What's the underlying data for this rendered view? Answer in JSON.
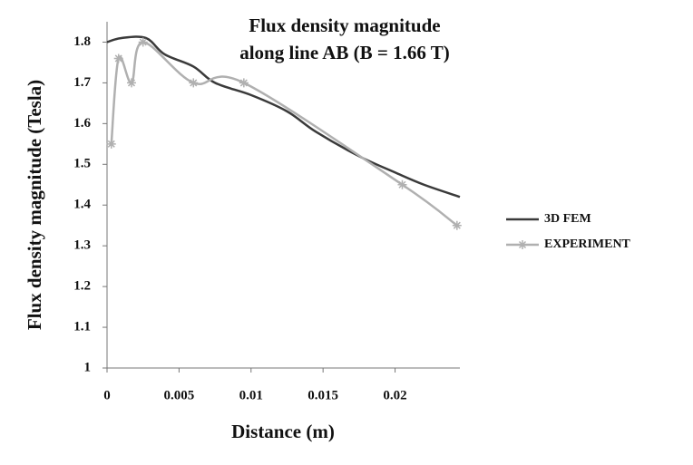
{
  "chart_data": {
    "type": "line",
    "title": [
      "Flux density magnitude",
      "along line AB (B = 1.66 T)"
    ],
    "x_label": "Distance (m)",
    "y_label": "Flux density magnitude  (Tesla)",
    "xlim": [
      0,
      0.0245
    ],
    "xticks": [
      0,
      0.005,
      0.01,
      0.015,
      0.02
    ],
    "ylim": [
      1,
      1.85
    ],
    "yticks": [
      1,
      1.1,
      1.2,
      1.3,
      1.4,
      1.5,
      1.6,
      1.7,
      1.8
    ],
    "series": [
      {
        "name": "3D FEM",
        "color": "#3a3a3a",
        "markers": false,
        "x": [
          0,
          0.001,
          0.0027,
          0.004,
          0.006,
          0.0075,
          0.01,
          0.0125,
          0.0145,
          0.0175,
          0.02,
          0.022,
          0.0245
        ],
        "values": [
          1.8,
          1.81,
          1.81,
          1.77,
          1.74,
          1.7,
          1.67,
          1.63,
          1.58,
          1.52,
          1.48,
          1.45,
          1.42
        ]
      },
      {
        "name": "EXPERIMENT",
        "color": "#b0b0b0",
        "markers": true,
        "x": [
          0.0003,
          0.0008,
          0.0017,
          0.0025,
          0.006,
          0.0095,
          0.0205,
          0.0243
        ],
        "values": [
          1.55,
          1.76,
          1.7,
          1.8,
          1.7,
          1.7,
          1.45,
          1.35
        ]
      }
    ]
  }
}
